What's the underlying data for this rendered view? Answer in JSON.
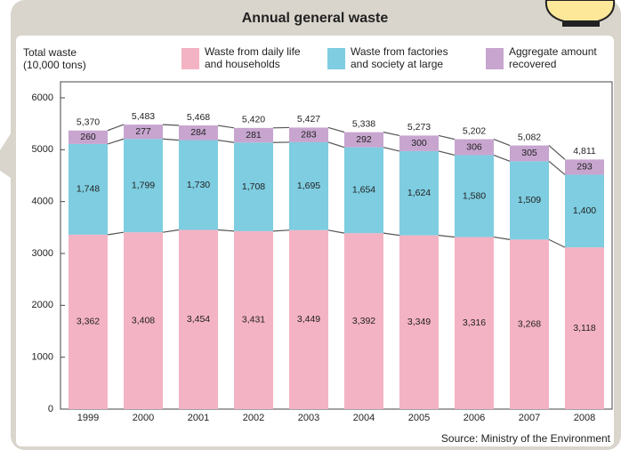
{
  "chart_data": {
    "type": "stacked_bar",
    "title": "Annual general waste",
    "y_label": "Total waste (10,000 tons)",
    "source": "Source: Ministry of the Environment",
    "categories": [
      "1999",
      "2000",
      "2001",
      "2002",
      "2003",
      "2004",
      "2005",
      "2006",
      "2007",
      "2008"
    ],
    "series": [
      {
        "name": "Waste from daily life and households",
        "color": "#f4b3c4",
        "values": [
          3362,
          3408,
          3454,
          3431,
          3449,
          3392,
          3349,
          3316,
          3268,
          3118
        ],
        "value_labels": [
          "3,362",
          "3,408",
          "3,454",
          "3,431",
          "3,449",
          "3,392",
          "3,349",
          "3,316",
          "3,268",
          "3,118"
        ]
      },
      {
        "name": "Waste from factories and society at large",
        "color": "#7ecde1",
        "values": [
          1748,
          1799,
          1730,
          1708,
          1695,
          1654,
          1624,
          1580,
          1509,
          1400
        ],
        "value_labels": [
          "1,748",
          "1,799",
          "1,730",
          "1,708",
          "1,695",
          "1,654",
          "1,624",
          "1,580",
          "1,509",
          "1,400"
        ]
      },
      {
        "name": "Aggregate amount recovered",
        "color": "#c7a5cf",
        "values": [
          260,
          277,
          284,
          281,
          283,
          292,
          300,
          306,
          305,
          293
        ]
      }
    ],
    "totals": [
      5370,
      5483,
      5468,
      5420,
      5427,
      5338,
      5273,
      5202,
      5082,
      4811
    ],
    "totals_labels": [
      "5,370",
      "5,483",
      "5,468",
      "5,420",
      "5,427",
      "5,338",
      "5,273",
      "5,202",
      "5,082",
      "4,811"
    ],
    "ylim": [
      0,
      6000
    ],
    "yticks": [
      0,
      1000,
      2000,
      3000,
      4000,
      5000,
      6000
    ]
  }
}
